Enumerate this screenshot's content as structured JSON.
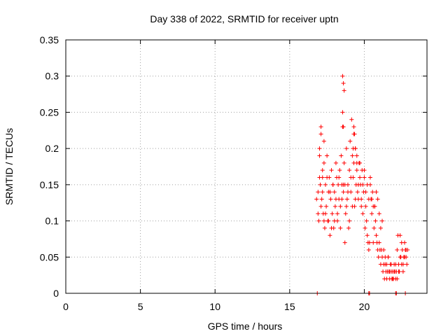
{
  "chart_data": {
    "type": "scatter",
    "title": "Day 338 of 2022, SRMTID for receiver uptn",
    "xlabel": "GPS time / hours",
    "ylabel": "SRMTID / TECUs",
    "xlim": [
      0,
      24.2
    ],
    "ylim": [
      0,
      0.35
    ],
    "x_ticks": [
      0,
      5,
      10,
      15,
      20
    ],
    "x_tick_labels": [
      "0",
      "5",
      "10",
      "15",
      "20"
    ],
    "y_ticks": [
      0,
      0.05,
      0.1,
      0.15,
      0.2,
      0.25,
      0.3,
      0.35
    ],
    "y_tick_labels": [
      "0",
      "0.05",
      "0.1",
      "0.15",
      "0.2",
      "0.25",
      "0.3",
      "0.35"
    ],
    "grid": true,
    "legend": "none",
    "marker": "+",
    "color": "#ff0000",
    "series": [
      {
        "x": [
          16.8,
          16.9,
          16.95,
          17.0,
          17.05,
          17.1,
          17.15,
          17.2,
          17.25,
          17.3,
          17.35,
          17.4,
          17.45,
          17.5,
          17.55,
          17.6,
          17.65,
          17.7,
          17.75,
          17.8,
          17.85,
          17.9,
          17.95,
          18.0,
          18.05,
          18.1,
          18.15,
          18.2,
          18.25,
          18.3,
          18.35,
          18.4,
          18.45,
          18.5,
          18.55,
          18.6,
          18.65,
          18.7,
          18.75,
          18.8,
          18.85,
          18.9,
          18.95,
          19.0,
          19.05,
          19.1,
          19.15,
          19.2,
          19.25,
          19.3,
          19.35,
          19.4,
          19.45,
          19.5,
          19.55,
          19.6,
          19.65,
          19.7,
          19.75,
          19.8,
          19.85,
          19.9,
          19.95,
          20.0,
          20.05,
          20.1,
          20.15,
          20.2,
          20.25,
          20.3,
          20.35,
          20.4,
          20.45,
          20.5,
          20.55,
          20.6,
          20.65,
          20.7,
          20.75,
          20.8,
          20.85,
          20.9,
          20.95,
          21.0,
          21.05,
          21.1,
          21.15,
          21.2,
          21.25,
          21.3,
          21.35,
          21.4,
          21.45,
          21.5,
          21.55,
          21.6,
          21.65,
          21.7,
          21.75,
          21.8,
          21.85,
          21.9,
          21.95,
          22.0,
          22.05,
          22.1,
          22.15,
          22.2,
          22.25,
          22.3,
          22.35,
          22.4,
          22.45,
          22.5,
          22.55,
          22.6,
          22.65,
          22.7,
          22.75,
          22.8,
          22.85,
          22.9,
          16.9,
          17.0,
          17.1,
          17.2,
          17.3,
          17.4,
          17.5,
          17.6,
          17.7,
          17.8,
          17.9,
          18.0,
          18.1,
          18.2,
          18.3,
          18.4,
          18.5,
          18.6,
          18.7,
          18.8,
          18.9,
          19.0,
          19.1,
          19.2,
          19.3,
          19.4,
          19.5,
          19.6,
          19.7,
          19.8,
          19.9,
          20.0,
          20.1,
          20.2,
          20.3,
          20.4,
          20.5,
          20.6,
          20.7,
          20.8,
          20.9,
          21.0,
          21.1,
          21.2,
          21.3,
          21.4,
          21.5,
          21.6,
          21.7,
          21.8,
          21.9,
          22.0,
          22.1,
          22.2,
          22.3,
          22.4,
          22.5,
          22.6,
          22.7,
          22.8,
          17.0,
          17.1,
          17.2,
          17.3,
          18.55,
          18.6,
          18.65,
          18.55,
          18.6,
          19.3,
          19.35,
          19.4,
          19.5,
          19.25,
          16.85,
          20.3,
          20.35,
          22.1,
          22.15,
          22.75
        ],
        "y": [
          0.13,
          0.14,
          0.1,
          0.2,
          0.15,
          0.23,
          0.13,
          0.16,
          0.11,
          0.18,
          0.09,
          0.15,
          0.12,
          0.19,
          0.1,
          0.14,
          0.16,
          0.08,
          0.13,
          0.17,
          0.11,
          0.15,
          0.09,
          0.14,
          0.12,
          0.18,
          0.16,
          0.1,
          0.15,
          0.13,
          0.17,
          0.12,
          0.19,
          0.15,
          0.23,
          0.14,
          0.18,
          0.15,
          0.11,
          0.2,
          0.13,
          0.15,
          0.09,
          0.17,
          0.21,
          0.14,
          0.24,
          0.19,
          0.16,
          0.22,
          0.12,
          0.2,
          0.15,
          0.17,
          0.14,
          0.13,
          0.18,
          0.16,
          0.15,
          0.12,
          0.17,
          0.11,
          0.14,
          0.16,
          0.09,
          0.12,
          0.1,
          0.08,
          0.07,
          0.06,
          0.07,
          0.15,
          0.13,
          0.11,
          0.14,
          0.12,
          0.09,
          0.12,
          0.1,
          0.08,
          0.07,
          0.06,
          0.05,
          0.07,
          0.06,
          0.04,
          0.06,
          0.05,
          0.03,
          0.04,
          0.02,
          0.04,
          0.03,
          0.02,
          0.03,
          0.05,
          0.03,
          0.02,
          0.04,
          0.03,
          0.02,
          0.03,
          0.02,
          0.04,
          0.03,
          0.02,
          0.03,
          0.06,
          0.08,
          0.04,
          0.03,
          0.08,
          0.05,
          0.04,
          0.06,
          0.03,
          0.05,
          0.07,
          0.06,
          0.05,
          0.04,
          0.06,
          0.11,
          0.16,
          0.12,
          0.14,
          0.21,
          0.11,
          0.16,
          0.1,
          0.14,
          0.09,
          0.15,
          0.1,
          0.13,
          0.11,
          0.16,
          0.09,
          0.13,
          0.15,
          0.07,
          0.12,
          0.14,
          0.1,
          0.16,
          0.12,
          0.18,
          0.13,
          0.19,
          0.15,
          0.18,
          0.13,
          0.15,
          0.17,
          0.14,
          0.15,
          0.13,
          0.16,
          0.13,
          0.07,
          0.12,
          0.14,
          0.13,
          0.11,
          0.09,
          0.1,
          0.06,
          0.05,
          0.04,
          0.05,
          0.03,
          0.04,
          0.02,
          0.03,
          0.04,
          0.02,
          0.03,
          0.05,
          0.07,
          0.04,
          0.05,
          0.06,
          0.19,
          0.22,
          0.17,
          0.1,
          0.3,
          0.29,
          0.28,
          0.25,
          0.23,
          0.23,
          0.22,
          0.2,
          0.18,
          0.2,
          0.0,
          0.0,
          0.0,
          0.0,
          0.0,
          0.0
        ]
      }
    ]
  }
}
